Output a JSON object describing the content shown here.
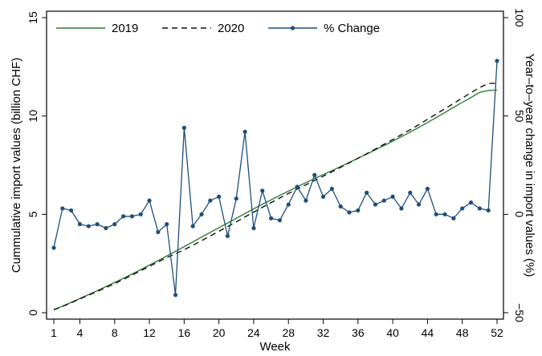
{
  "chart_data": {
    "type": "line",
    "xlabel": "Week",
    "ylabel_left": "Cummulative import values (billion CHF)",
    "ylabel_right": "Year–to–year change in import values (%)",
    "x_ticks": [
      1,
      4,
      8,
      12,
      16,
      20,
      24,
      28,
      32,
      36,
      40,
      44,
      48,
      52
    ],
    "x_tick_labels": [
      "1",
      "4",
      "8",
      "12",
      "16",
      "20",
      "24",
      "28",
      "32",
      "36",
      "40",
      "44",
      "48",
      "52"
    ],
    "xlim": [
      1,
      52
    ],
    "ylim_left": [
      0,
      15
    ],
    "y_ticks_left": [
      0,
      5,
      10,
      15
    ],
    "y_tick_labels_left": [
      "0",
      "5",
      "10",
      "15"
    ],
    "ylim_right": [
      -50,
      100
    ],
    "y_ticks_right": [
      -50,
      0,
      50,
      100
    ],
    "y_tick_labels_right": [
      "−50",
      "0",
      "50",
      "100"
    ],
    "grid": false,
    "legend_position": "top",
    "x": [
      1,
      2,
      3,
      4,
      5,
      6,
      7,
      8,
      9,
      10,
      11,
      12,
      13,
      14,
      15,
      16,
      17,
      18,
      19,
      20,
      21,
      22,
      23,
      24,
      25,
      26,
      27,
      28,
      29,
      30,
      31,
      32,
      33,
      34,
      35,
      36,
      37,
      38,
      39,
      40,
      41,
      42,
      43,
      44,
      45,
      46,
      47,
      48,
      49,
      50,
      51,
      52
    ],
    "series": [
      {
        "name": "2019",
        "axis": "left",
        "style": "solid",
        "color": "#2e7d32",
        "values": [
          0.15,
          0.33,
          0.52,
          0.72,
          0.92,
          1.12,
          1.33,
          1.54,
          1.75,
          1.97,
          2.19,
          2.42,
          2.65,
          2.88,
          3.12,
          3.36,
          3.6,
          3.84,
          4.08,
          4.32,
          4.56,
          4.8,
          5.04,
          5.28,
          5.51,
          5.74,
          5.96,
          6.18,
          6.4,
          6.61,
          6.82,
          7.02,
          7.22,
          7.43,
          7.64,
          7.85,
          8.06,
          8.28,
          8.5,
          8.72,
          8.95,
          9.18,
          9.42,
          9.67,
          9.92,
          10.18,
          10.44,
          10.69,
          10.94,
          11.2,
          11.3,
          11.32
        ]
      },
      {
        "name": "2020",
        "axis": "left",
        "style": "dashed",
        "color": "#111111",
        "values": [
          0.15,
          0.32,
          0.5,
          0.7,
          0.89,
          1.08,
          1.28,
          1.48,
          1.69,
          1.91,
          2.13,
          2.36,
          2.58,
          2.8,
          3.0,
          3.2,
          3.43,
          3.66,
          3.9,
          4.14,
          4.38,
          4.62,
          4.87,
          5.11,
          5.36,
          5.6,
          5.83,
          6.06,
          6.29,
          6.5,
          6.72,
          6.94,
          7.16,
          7.39,
          7.62,
          7.85,
          8.08,
          8.32,
          8.56,
          8.8,
          9.05,
          9.3,
          9.56,
          9.83,
          10.1,
          10.37,
          10.64,
          10.91,
          11.18,
          11.45,
          11.65,
          11.67
        ]
      },
      {
        "name": "% Change",
        "axis": "right",
        "style": "solid-markers",
        "color": "#1f4e79",
        "values": [
          -17,
          3,
          2,
          -5,
          -6,
          -5,
          -7,
          -5,
          -1,
          -1,
          0,
          7,
          -9,
          -5,
          -41,
          44,
          -6,
          0,
          7,
          9,
          -11,
          8,
          42,
          -7,
          12,
          -2,
          -3,
          5,
          14,
          7,
          20,
          9,
          13,
          4,
          1,
          2,
          11,
          5,
          7,
          9,
          3,
          11,
          5,
          13,
          0,
          0,
          -2,
          3,
          6,
          3,
          2,
          78
        ]
      }
    ]
  }
}
